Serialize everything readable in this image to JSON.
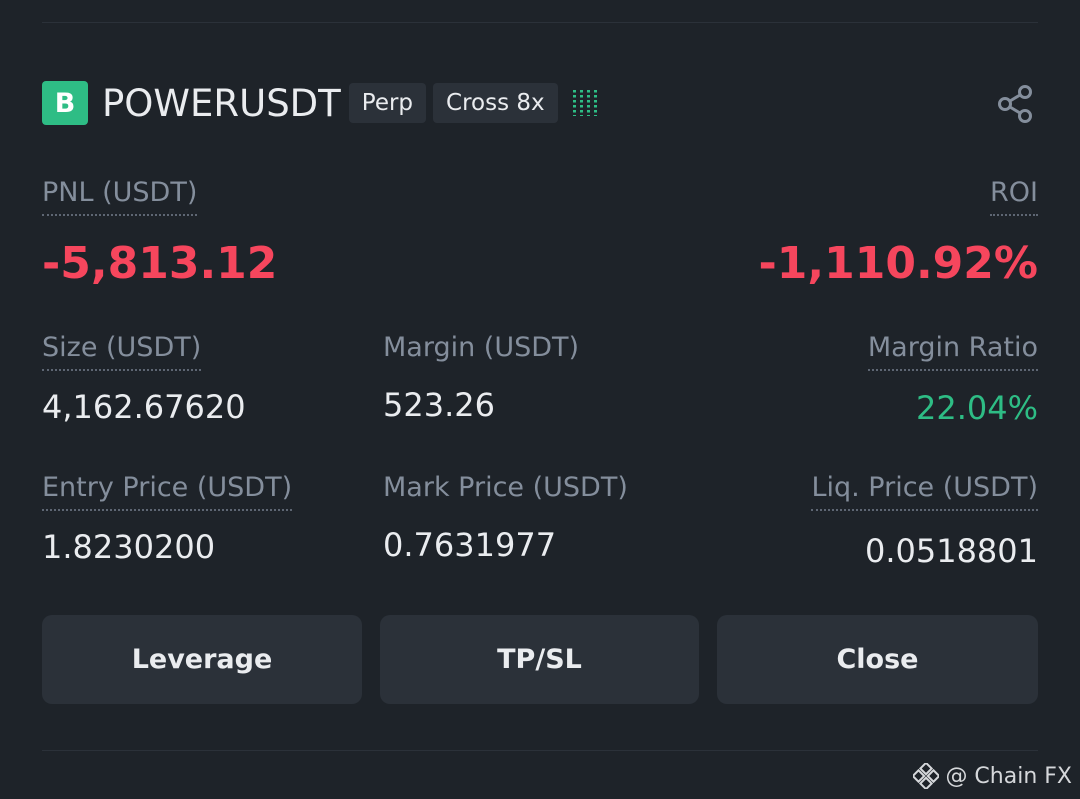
{
  "position": {
    "side_badge": "B",
    "symbol": "POWERUSDT",
    "contract_type": "Perp",
    "margin_mode": "Cross 8x",
    "share_icon": "share-icon"
  },
  "stats": {
    "pnl_label": "PNL (USDT)",
    "pnl_value": "-5,813.12",
    "roi_label": "ROI",
    "roi_value": "-1,110.92%",
    "size_label": "Size (USDT)",
    "size_value": "4,162.67620",
    "margin_label": "Margin (USDT)",
    "margin_value": "523.26",
    "margin_ratio_label": "Margin Ratio",
    "margin_ratio_value": "22.04%",
    "entry_price_label": "Entry Price (USDT)",
    "entry_price_value": "1.8230200",
    "mark_price_label": "Mark Price (USDT)",
    "mark_price_value": "0.7631977",
    "liq_price_label": "Liq. Price (USDT)",
    "liq_price_value": "0.0518801"
  },
  "actions": {
    "leverage_label": "Leverage",
    "tpsl_label": "TP/SL",
    "close_label": "Close"
  },
  "watermark": {
    "text": "@ Chain FX",
    "icon": "binance-logo-icon"
  },
  "colors": {
    "background": "#1e2329",
    "panel": "#2b3139",
    "negative": "#f6465d",
    "positive": "#2ebd85",
    "text_primary": "#eaecef",
    "text_secondary": "#848e9c"
  }
}
